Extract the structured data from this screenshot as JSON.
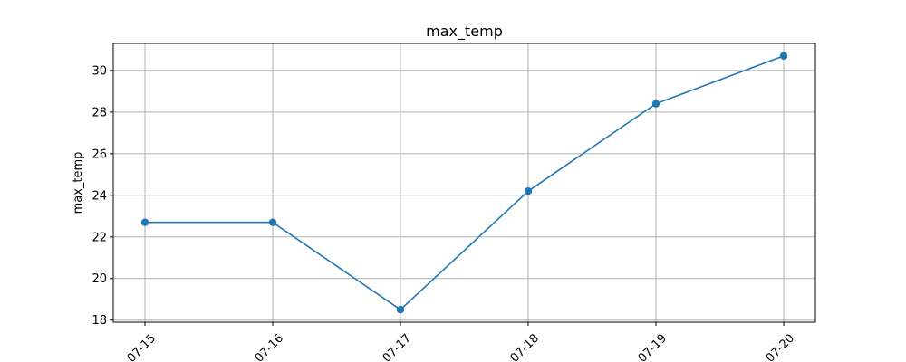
{
  "chart_data": {
    "type": "line",
    "title": "max_temp",
    "xlabel": "",
    "ylabel": "max_temp",
    "categories": [
      "07-15",
      "07-16",
      "07-17",
      "07-18",
      "07-19",
      "07-20"
    ],
    "series": [
      {
        "values": [
          22.7,
          22.7,
          18.5,
          24.2,
          28.4,
          30.7
        ]
      }
    ],
    "y_ticks": [
      "18",
      "20",
      "22",
      "24",
      "26",
      "28",
      "30"
    ],
    "ylim": [
      17.9,
      31.3
    ],
    "grid": true,
    "marker": "circle",
    "colors": {
      "line": "#1f77b4",
      "grid": "#b0b0b0",
      "axes": "#000000"
    }
  }
}
